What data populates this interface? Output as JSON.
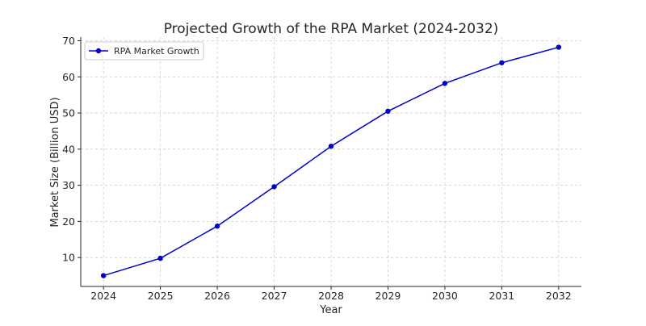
{
  "chart_data": {
    "type": "line",
    "title": "Projected Growth of the RPA Market (2024-2032)",
    "xlabel": "Year",
    "ylabel": "Market Size (Billion USD)",
    "x": [
      2024,
      2025,
      2026,
      2027,
      2028,
      2029,
      2030,
      2031,
      2032
    ],
    "series": [
      {
        "name": "RPA Market Growth",
        "color": "#0000cc",
        "marker": "circle",
        "values": [
          5.0,
          9.8,
          18.7,
          29.6,
          40.8,
          50.5,
          58.2,
          63.9,
          68.2
        ]
      }
    ],
    "ylim": [
      2.0,
      71.0
    ],
    "xlim": [
      2023.6,
      2032.4
    ],
    "yticks": [
      10,
      20,
      30,
      40,
      50,
      60,
      70
    ],
    "xticks": [
      2024,
      2025,
      2026,
      2027,
      2028,
      2029,
      2030,
      2031,
      2032
    ],
    "grid": true,
    "legend_position": "top-left"
  }
}
